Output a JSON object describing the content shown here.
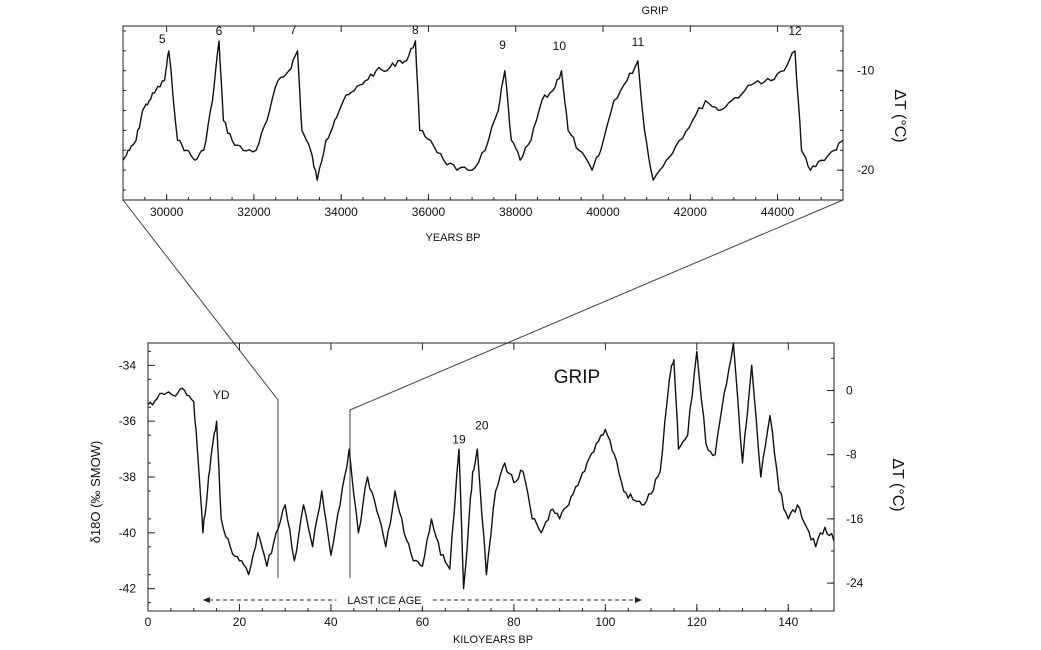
{
  "chart_data": [
    {
      "type": "line",
      "title": "GRIP",
      "xlabel": "YEARS BP",
      "ylabel_right": "ΔT (°C)",
      "xlim": [
        29000,
        45500
      ],
      "ylim_right": [
        -23,
        -5.5
      ],
      "x_ticks": [
        30000,
        32000,
        34000,
        36000,
        38000,
        40000,
        42000,
        44000
      ],
      "x_tick_labels": [
        "30000",
        "32000",
        "34000",
        "36000",
        "38000",
        "40000",
        "42000",
        "44000"
      ],
      "y_right_ticks": [
        -10,
        -20
      ],
      "y_right_tick_labels": [
        "-10",
        "-20"
      ],
      "grid": false,
      "legend": "none",
      "color": "#111111",
      "annotations": [
        {
          "text": "5",
          "x": 29900,
          "y": -7.2
        },
        {
          "text": "6",
          "x": 31200,
          "y": -6.4
        },
        {
          "text": "7",
          "x": 32900,
          "y": -6.3
        },
        {
          "text": "8",
          "x": 35700,
          "y": -6.3
        },
        {
          "text": "9",
          "x": 37700,
          "y": -7.8
        },
        {
          "text": "10",
          "x": 39000,
          "y": -7.9
        },
        {
          "text": "11",
          "x": 40800,
          "y": -7.5
        },
        {
          "text": "12",
          "x": 44400,
          "y": -6.4
        }
      ],
      "series": [
        {
          "x": [
            29000,
            29150,
            29300,
            29450,
            29600,
            29750,
            29950,
            30050,
            30250,
            30450,
            30650,
            30850,
            31050,
            31200,
            31300,
            31500,
            31750,
            32050,
            32300,
            32550,
            32800,
            33000,
            33100,
            33300,
            33450,
            33650,
            33850,
            34050,
            34300,
            34550,
            34800,
            35050,
            35300,
            35500,
            35700,
            35800,
            36050,
            36350,
            36650,
            37000,
            37300,
            37600,
            37750,
            37900,
            38100,
            38350,
            38600,
            38850,
            39050,
            39200,
            39450,
            39750,
            39950,
            40250,
            40550,
            40800,
            40950,
            41150,
            41450,
            41750,
            42050,
            42350,
            42650,
            42950,
            43250,
            43550,
            43850,
            44150,
            44400,
            44550,
            44750,
            45000,
            45300,
            45500
          ],
          "y": [
            -19,
            -18,
            -17,
            -14,
            -13,
            -12,
            -11,
            -8,
            -17,
            -18,
            -19,
            -18,
            -13,
            -7,
            -15,
            -17,
            -18,
            -18,
            -15,
            -11,
            -10,
            -8,
            -16,
            -18,
            -21,
            -17,
            -15,
            -13,
            -12,
            -11,
            -10,
            -10,
            -9,
            -9,
            -7,
            -16,
            -17,
            -19,
            -20,
            -20,
            -18,
            -14,
            -10,
            -17,
            -19,
            -17,
            -13,
            -12,
            -10,
            -16,
            -18,
            -20,
            -18,
            -13,
            -11,
            -9,
            -16,
            -21,
            -19,
            -17,
            -15,
            -13,
            -14,
            -13,
            -12,
            -11,
            -11,
            -10,
            -8,
            -18,
            -20,
            -19,
            -18,
            -17
          ]
        }
      ]
    },
    {
      "type": "line",
      "title": "GRIP",
      "xlabel": "KILOYEARS BP",
      "ylabel": "δ18O (‰ SMOW)",
      "ylabel_right": "ΔT (°C)",
      "xlim": [
        0,
        150
      ],
      "ylim": [
        -42.8,
        -33.2
      ],
      "x_ticks": [
        0,
        20,
        40,
        60,
        80,
        100,
        120,
        140
      ],
      "x_tick_labels": [
        "0",
        "20",
        "40",
        "60",
        "80",
        "100",
        "120",
        "140"
      ],
      "y_ticks": [
        -34,
        -36,
        -38,
        -40,
        -42
      ],
      "y_tick_labels": [
        "-34",
        "-36",
        "-38",
        "-40",
        "-42"
      ],
      "y_right_ticks": [
        0,
        -8,
        -16,
        -24
      ],
      "y_right_tick_labels": [
        "0",
        "-8",
        "-16",
        "-24"
      ],
      "grid": false,
      "legend": "none",
      "color": "#111111",
      "annotations": [
        {
          "text": "YD",
          "x": 16,
          "y": -35.2
        },
        {
          "text": "19",
          "x": 68,
          "y": -36.8
        },
        {
          "text": "20",
          "x": 73,
          "y": -36.3
        }
      ],
      "range_label": {
        "text": "LAST ICE AGE",
        "x_start": 12,
        "x_end": 108
      },
      "series": [
        {
          "x": [
            0,
            2,
            4,
            6,
            8,
            10,
            11,
            12,
            13,
            14,
            15,
            16,
            18,
            20,
            22,
            24,
            26,
            28,
            30,
            32,
            34,
            36,
            38,
            40,
            42,
            44,
            46,
            48,
            50,
            52,
            54,
            56,
            58,
            60,
            62,
            64,
            66,
            68,
            69,
            70,
            71,
            72,
            74,
            76,
            78,
            80,
            82,
            84,
            86,
            88,
            90,
            92,
            94,
            96,
            98,
            100,
            102,
            104,
            106,
            108,
            110,
            112,
            114,
            115,
            116,
            118,
            120,
            122,
            124,
            126,
            128,
            130,
            132,
            134,
            136,
            138,
            140,
            142,
            144,
            146,
            148,
            150
          ],
          "y": [
            -35.4,
            -35.2,
            -35.0,
            -35.1,
            -34.9,
            -35.3,
            -37.5,
            -40.0,
            -38.5,
            -37.0,
            -36.0,
            -39.5,
            -40.5,
            -41.0,
            -41.5,
            -40.0,
            -41.2,
            -40.0,
            -39.0,
            -41.0,
            -39.0,
            -40.5,
            -38.5,
            -40.8,
            -39.0,
            -37.0,
            -40.0,
            -38.0,
            -39.2,
            -40.5,
            -38.5,
            -40.0,
            -41.0,
            -41.2,
            -39.5,
            -40.8,
            -41.3,
            -37.0,
            -42.0,
            -40.0,
            -37.8,
            -37.0,
            -41.5,
            -38.5,
            -37.5,
            -38.2,
            -37.8,
            -39.5,
            -40.0,
            -39.2,
            -39.5,
            -39.0,
            -38.3,
            -37.5,
            -36.8,
            -36.3,
            -37.2,
            -38.5,
            -38.8,
            -39.0,
            -38.6,
            -37.8,
            -34.5,
            -33.8,
            -37.0,
            -36.5,
            -33.5,
            -36.8,
            -37.2,
            -35.0,
            -33.2,
            -37.5,
            -34.0,
            -38.0,
            -35.8,
            -38.5,
            -39.5,
            -39.0,
            -39.8,
            -40.5,
            -39.8,
            -40.3
          ]
        }
      ]
    }
  ]
}
